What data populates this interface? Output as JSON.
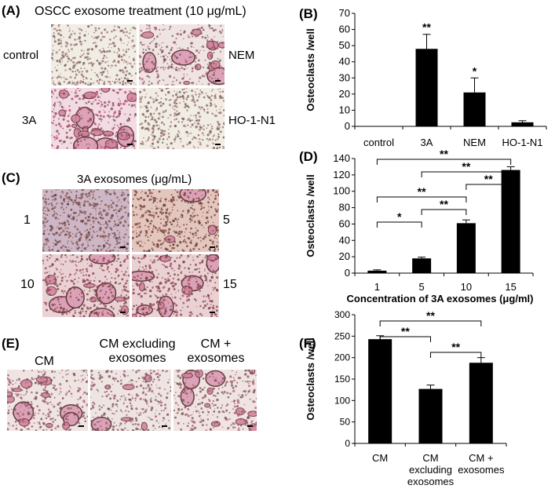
{
  "panels": {
    "A": {
      "label": "(A)",
      "title": "OSCC exosome treatment  (10 μg/mL)",
      "images": [
        "control",
        "NEM",
        "3A",
        "HO-1-N1"
      ]
    },
    "C": {
      "label": "(C)",
      "title": "3A exosomes (μg/mL)",
      "images": [
        "1",
        "5",
        "10",
        "15"
      ]
    },
    "E": {
      "label": "(E)",
      "images": [
        "CM",
        "CM excluding exosomes",
        "CM + exosomes"
      ],
      "label_lines": [
        [
          "CM"
        ],
        [
          "CM excluding",
          "exosomes"
        ],
        [
          "CM +",
          "exosomes"
        ]
      ]
    },
    "B": {
      "label": "(B)"
    },
    "D": {
      "label": "(D)"
    },
    "F": {
      "label": "(F)"
    }
  },
  "chart_data": [
    {
      "id": "B",
      "type": "bar",
      "categories": [
        "control",
        "3A",
        "NEM",
        "HO-1-N1"
      ],
      "values": [
        0,
        48,
        21,
        2.5
      ],
      "errors": [
        0,
        9,
        9,
        1
      ],
      "ylabel": "Osteoclasts /well",
      "ylim": [
        0,
        70
      ],
      "yticks": [
        0,
        10,
        20,
        30,
        40,
        50,
        60,
        70
      ],
      "significance": [
        "",
        "**",
        "*",
        ""
      ]
    },
    {
      "id": "D",
      "type": "bar",
      "categories": [
        "1",
        "5",
        "10",
        "15"
      ],
      "values": [
        3,
        18,
        61,
        126
      ],
      "errors": [
        1,
        1.5,
        4,
        4
      ],
      "xlabel": "Concentration of 3A exosomes (μg/ml)",
      "ylabel": "Osteoclasts /well",
      "ylim": [
        0,
        140
      ],
      "yticks": [
        0,
        20,
        40,
        60,
        80,
        100,
        120,
        140
      ],
      "brackets": [
        {
          "from": 0,
          "to": 3,
          "label": "**"
        },
        {
          "from": 1,
          "to": 3,
          "label": "**"
        },
        {
          "from": 2,
          "to": 3,
          "label": "**"
        },
        {
          "from": 0,
          "to": 2,
          "label": "**"
        },
        {
          "from": 1,
          "to": 2,
          "label": "**"
        },
        {
          "from": 0,
          "to": 1,
          "label": "*"
        }
      ]
    },
    {
      "id": "F",
      "type": "bar",
      "categories": [
        "CM",
        "CM excluding exosomes",
        "CM + exosomes"
      ],
      "category_lines": [
        [
          "CM"
        ],
        [
          "CM",
          "excluding",
          "exosomes"
        ],
        [
          "CM +",
          "exosomes"
        ]
      ],
      "values": [
        243,
        127,
        188
      ],
      "errors": [
        8,
        9,
        12
      ],
      "ylabel": "Osteoclasts /well",
      "ylim": [
        0,
        300
      ],
      "yticks": [
        0,
        50,
        100,
        150,
        200,
        250,
        300
      ],
      "brackets": [
        {
          "from": 0,
          "to": 2,
          "label": "**"
        },
        {
          "from": 0,
          "to": 1,
          "label": "**"
        },
        {
          "from": 1,
          "to": 2,
          "label": "**"
        }
      ]
    }
  ]
}
